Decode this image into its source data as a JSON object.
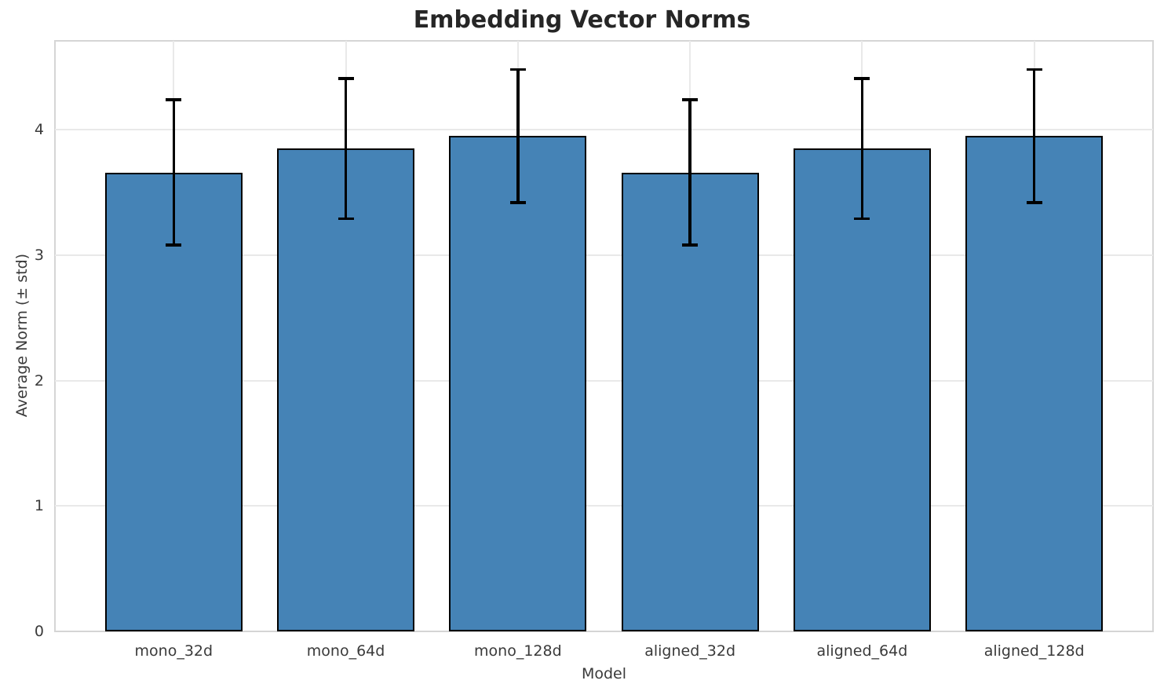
{
  "chart_data": {
    "type": "bar",
    "title": "Embedding Vector Norms",
    "xlabel": "Model",
    "ylabel": "Average Norm (± std)",
    "categories": [
      "mono_32d",
      "mono_64d",
      "mono_128d",
      "aligned_32d",
      "aligned_64d",
      "aligned_128d"
    ],
    "values": [
      3.66,
      3.85,
      3.95,
      3.66,
      3.85,
      3.95
    ],
    "errors": [
      0.58,
      0.56,
      0.53,
      0.58,
      0.56,
      0.53
    ],
    "yticks": [
      0,
      1,
      2,
      3,
      4
    ],
    "ylim": [
      0,
      4.71
    ],
    "grid": true,
    "legend": "none",
    "bar_color": "#4583B6",
    "bar_edge_color": "#000000",
    "error_color": "#000000",
    "grid_color": "#e9e9e9",
    "spine_color": "#d5d5d5",
    "title_color": "#262626",
    "text_color": "#3a3a3a"
  }
}
